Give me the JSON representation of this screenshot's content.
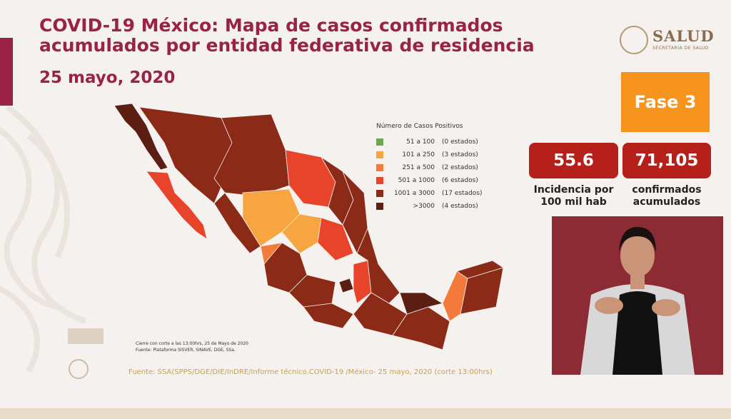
{
  "header": {
    "title": "COVID-19 México: Mapa de casos confirmados acumulados por entidad federativa de residencia",
    "date": "25 mayo, 2020"
  },
  "logo": {
    "text": "SALUD",
    "subtitle": "SECRETARÍA DE SALUD"
  },
  "phase": {
    "label": "Fase 3"
  },
  "stats": {
    "incidence": {
      "value": "55.6",
      "label": "Incidencia por 100 mil hab"
    },
    "confirmed": {
      "value": "71,105",
      "label": "confirmados acumulados"
    }
  },
  "legend": {
    "title": "Número de Casos Positivos",
    "items": [
      {
        "range": "51 a 100",
        "count": "(0 estados)",
        "color": "#6aa84f"
      },
      {
        "range": "101 a 250",
        "count": "(3 estados)",
        "color": "#f7a540"
      },
      {
        "range": "251 a 500",
        "count": "(2 estados)",
        "color": "#f47a3c"
      },
      {
        "range": "501 a 1000",
        "count": "(6 estados)",
        "color": "#e8442b"
      },
      {
        "range": "1001 a 3000",
        "count": "(17 estados)",
        "color": "#8b2a17"
      },
      {
        "range": ">3000",
        "count": "(4 estados)",
        "color": "#5a1f12"
      }
    ]
  },
  "map_note": {
    "cierre": "Cierre con corte a las 13:00hrs, 25 de Mayo de 2020",
    "fuente": "Fuente: Plataforma SISVER, SINAVE, DGE, SSa."
  },
  "footer": {
    "source": "Fuente: SSA(SPPS/DGE/DIE/InDRE/Informe técnico.COVID-19 /México- 25 mayo, 2020 (corte 13:00hrs)"
  },
  "colors": {
    "brand": "#9b2247",
    "phase": "#f7941d",
    "stat": "#b5201b"
  }
}
